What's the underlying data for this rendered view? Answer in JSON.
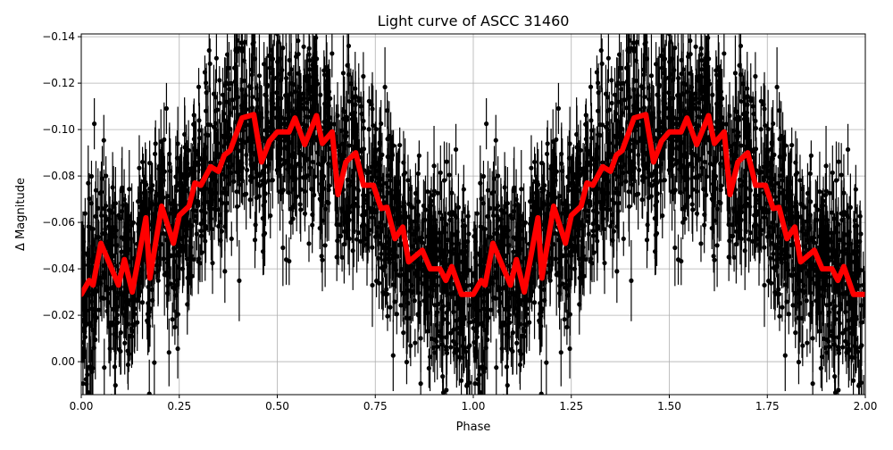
{
  "chart_data": {
    "type": "scatter",
    "title": "Light curve of ASCC 31460",
    "xlabel": "Phase",
    "ylabel": "Δ Magnitude",
    "xlim": [
      0,
      2
    ],
    "ylim": [
      0.0142,
      -0.1412
    ],
    "y_inverted": true,
    "grid": true,
    "x_ticks": [
      "0.00",
      "0.25",
      "0.50",
      "0.75",
      "1.00",
      "1.25",
      "1.50",
      "1.75",
      "2.00"
    ],
    "y_ticks": [
      "−0.14",
      "−0.12",
      "−0.10",
      "−0.08",
      "−0.06",
      "−0.04",
      "−0.02",
      "0.00"
    ],
    "series": [
      {
        "kind": "errorbar-points",
        "color": "#000000"
      },
      {
        "kind": "line",
        "color": "#ff0000",
        "periodic": true,
        "x": [
          0.0,
          0.02,
          0.03,
          0.05,
          0.095,
          0.11,
          0.13,
          0.165,
          0.175,
          0.205,
          0.235,
          0.25,
          0.275,
          0.29,
          0.305,
          0.33,
          0.35,
          0.365,
          0.38,
          0.41,
          0.44,
          0.46,
          0.48,
          0.5,
          0.53,
          0.545,
          0.57,
          0.6,
          0.615,
          0.64,
          0.655,
          0.675,
          0.7,
          0.72,
          0.745,
          0.765,
          0.78,
          0.8,
          0.82,
          0.835,
          0.87,
          0.89,
          0.915,
          0.93,
          0.945,
          0.97,
          1.0
        ],
        "y": [
          -0.029,
          -0.035,
          -0.033,
          -0.051,
          -0.033,
          -0.044,
          -0.03,
          -0.062,
          -0.036,
          -0.067,
          -0.051,
          -0.063,
          -0.067,
          -0.077,
          -0.076,
          -0.084,
          -0.082,
          -0.089,
          -0.091,
          -0.105,
          -0.1065,
          -0.086,
          -0.095,
          -0.099,
          -0.099,
          -0.105,
          -0.0935,
          -0.106,
          -0.094,
          -0.099,
          -0.072,
          -0.086,
          -0.09,
          -0.076,
          -0.076,
          -0.066,
          -0.0665,
          -0.053,
          -0.058,
          -0.043,
          -0.048,
          -0.04,
          -0.04,
          -0.035,
          -0.041,
          -0.029,
          -0.029
        ]
      }
    ]
  }
}
